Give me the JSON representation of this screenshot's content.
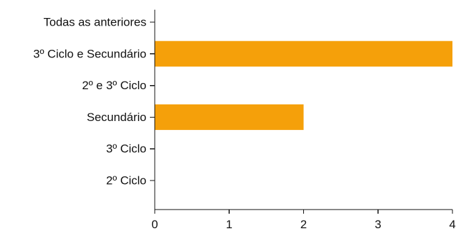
{
  "chart_data": {
    "type": "bar",
    "orientation": "horizontal",
    "title": "",
    "xlabel": "",
    "ylabel": "",
    "categories": [
      "Todas as anteriores",
      "3º Ciclo e Secundário",
      "2º e 3º Ciclo",
      "Secundário",
      "3º Ciclo",
      "2º Ciclo"
    ],
    "values": [
      0,
      4,
      0,
      2,
      0,
      0
    ],
    "xlim": [
      0,
      4
    ],
    "xticks": [
      "0",
      "1",
      "2",
      "3",
      "4"
    ],
    "grid": false,
    "legend": "none",
    "bar_color": "#f5a00a",
    "axis_color": "#111111"
  }
}
